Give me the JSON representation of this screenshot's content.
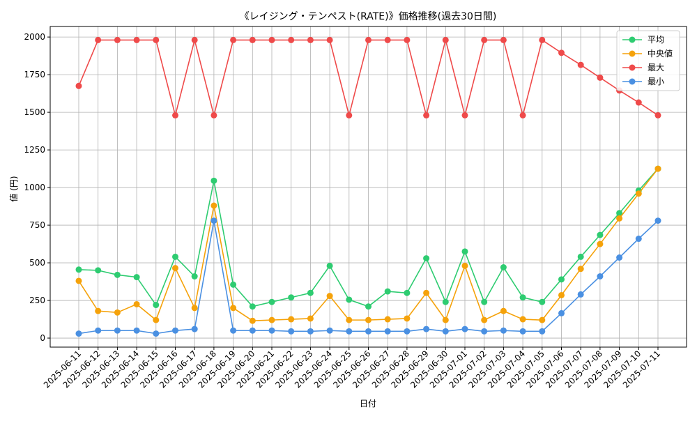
{
  "chart_data": {
    "type": "line",
    "title": "《レイジング・テンペスト(RATE)》価格推移(過去30日間)",
    "xlabel": "日付",
    "ylabel": "値 (円)",
    "ylim": [
      -60,
      2070
    ],
    "yticks": [
      0,
      250,
      500,
      750,
      1000,
      1250,
      1500,
      1750,
      2000
    ],
    "grid": true,
    "legend_position": "top-right",
    "categories": [
      "2025-06-11",
      "2025-06-12",
      "2025-06-13",
      "2025-06-14",
      "2025-06-15",
      "2025-06-16",
      "2025-06-17",
      "2025-06-18",
      "2025-06-19",
      "2025-06-20",
      "2025-06-21",
      "2025-06-22",
      "2025-06-23",
      "2025-06-24",
      "2025-06-25",
      "2025-06-26",
      "2025-06-27",
      "2025-06-28",
      "2025-06-29",
      "2025-06-30",
      "2025-07-01",
      "2025-07-02",
      "2025-07-03",
      "2025-07-04",
      "2025-07-05",
      "2025-07-06",
      "2025-07-07",
      "2025-07-08",
      "2025-07-09",
      "2025-07-10",
      "2025-07-11"
    ],
    "series": [
      {
        "name": "平均",
        "color": "#2ecc71",
        "values": [
          455,
          450,
          420,
          405,
          220,
          540,
          410,
          1045,
          355,
          210,
          240,
          270,
          300,
          480,
          255,
          210,
          310,
          300,
          530,
          240,
          575,
          240,
          470,
          270,
          240,
          390,
          540,
          685,
          830,
          980,
          1125
        ]
      },
      {
        "name": "中央値",
        "color": "#f5a20a",
        "values": [
          380,
          180,
          170,
          225,
          120,
          465,
          200,
          880,
          200,
          115,
          120,
          125,
          130,
          280,
          120,
          120,
          125,
          130,
          300,
          120,
          480,
          120,
          180,
          125,
          120,
          285,
          460,
          625,
          795,
          960,
          1125
        ]
      },
      {
        "name": "最大",
        "color": "#ef4a4a",
        "values": [
          1675,
          1980,
          1980,
          1980,
          1980,
          1480,
          1980,
          1480,
          1980,
          1980,
          1980,
          1980,
          1980,
          1980,
          1480,
          1980,
          1980,
          1980,
          1480,
          1980,
          1480,
          1980,
          1980,
          1480,
          1980,
          1895,
          1815,
          1730,
          1645,
          1565,
          1480
        ]
      },
      {
        "name": "最小",
        "color": "#4a90e2",
        "values": [
          30,
          50,
          50,
          50,
          30,
          50,
          60,
          780,
          50,
          50,
          50,
          45,
          45,
          50,
          45,
          45,
          45,
          45,
          60,
          45,
          60,
          45,
          50,
          45,
          45,
          165,
          290,
          410,
          535,
          660,
          780
        ]
      }
    ]
  }
}
